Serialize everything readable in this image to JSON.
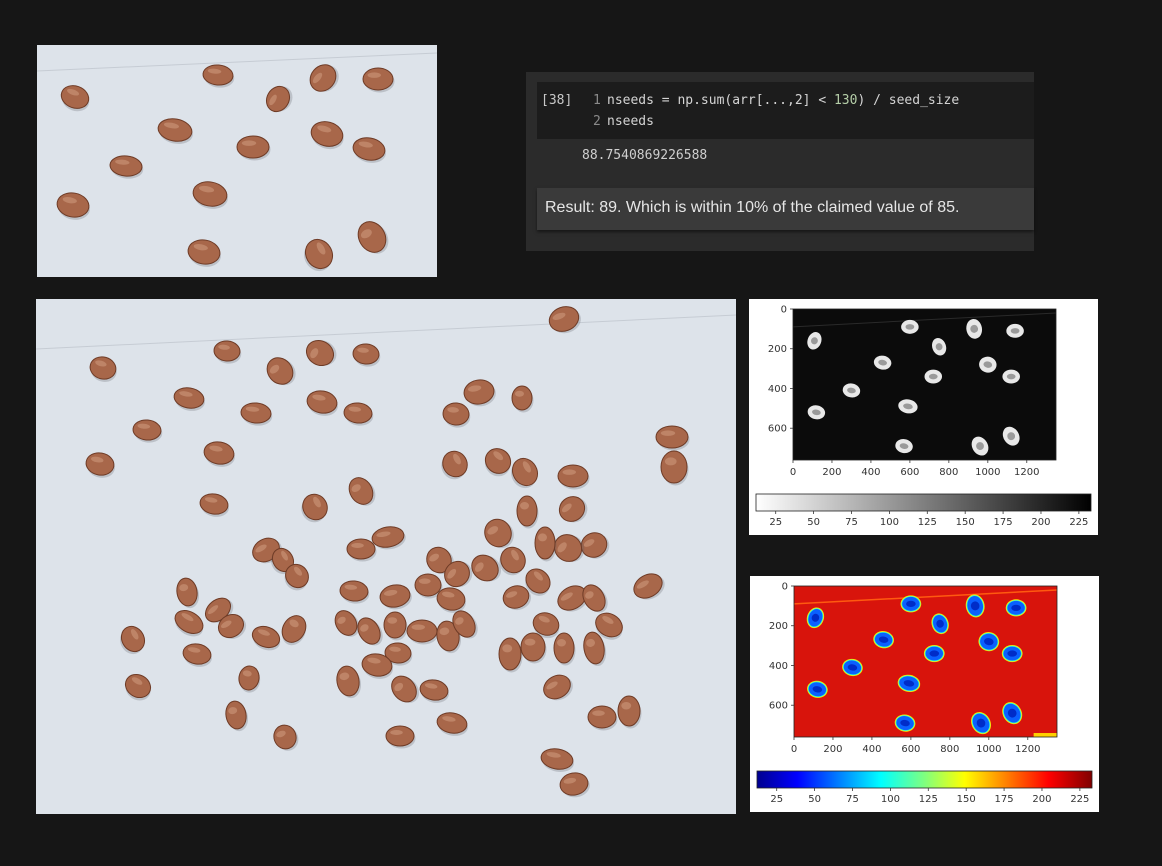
{
  "notebook": {
    "execution_count": "[38]",
    "code_lines": [
      {
        "number": "1",
        "text": "nseeds = np.sum(arr[...,2] < 130) / seed_size"
      },
      {
        "number": "2",
        "text": "nseeds"
      }
    ],
    "output": "88.7540869226588",
    "markdown": "Result: 89. Which is within 10% of the claimed value of 85."
  },
  "figures": [
    {
      "name": "grayscale-image-plot",
      "colormap": "gray_r",
      "x_ticks": [
        "0",
        "200",
        "400",
        "600",
        "800",
        "1000",
        "1200"
      ],
      "y_ticks": [
        "0",
        "200",
        "400",
        "600"
      ],
      "colorbar_ticks": [
        "25",
        "50",
        "75",
        "100",
        "125",
        "150",
        "175",
        "200",
        "225"
      ]
    },
    {
      "name": "jet-image-plot",
      "colormap": "jet",
      "x_ticks": [
        "0",
        "200",
        "400",
        "600",
        "800",
        "1000",
        "1200"
      ],
      "y_ticks": [
        "0",
        "200",
        "400",
        "600"
      ],
      "colorbar_ticks": [
        "25",
        "50",
        "75",
        "100",
        "125",
        "150",
        "175",
        "200",
        "225"
      ]
    }
  ],
  "colors": {
    "page_background": "#161616",
    "paper": "#dde3ea",
    "seed": "#a8674a",
    "seed_dark": "#6e3b26"
  }
}
